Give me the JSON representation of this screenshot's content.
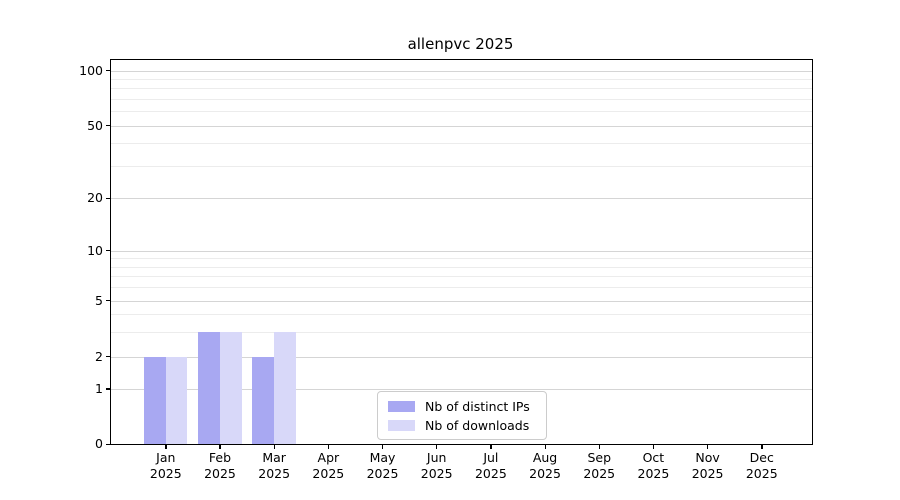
{
  "chart_data": {
    "type": "bar",
    "title": "allenpvc 2025",
    "categories": [
      "Jan 2025",
      "Feb 2025",
      "Mar 2025",
      "Apr 2025",
      "May 2025",
      "Jun 2025",
      "Jul 2025",
      "Aug 2025",
      "Sep 2025",
      "Oct 2025",
      "Nov 2025",
      "Dec 2025"
    ],
    "series": [
      {
        "name": "Nb of distinct IPs",
        "color": "#a8a8f2",
        "values": [
          2,
          3,
          2,
          0,
          0,
          0,
          0,
          0,
          0,
          0,
          0,
          0
        ]
      },
      {
        "name": "Nb of downloads",
        "color": "#d8d8f9",
        "values": [
          2,
          3,
          3,
          0,
          0,
          0,
          0,
          0,
          0,
          0,
          0,
          0
        ]
      }
    ],
    "xlabel": "",
    "ylabel": "",
    "yaxis": {
      "scale": "symlog",
      "major_ticks": [
        0,
        1,
        2,
        5,
        10,
        20,
        50,
        100
      ],
      "tick_labels": [
        "0",
        "1",
        "2",
        "5",
        "10",
        "20",
        "50",
        "100"
      ],
      "minor_gridlines": [
        3,
        4,
        6,
        7,
        8,
        9,
        30,
        40,
        60,
        70,
        80,
        90
      ],
      "ylim": [
        0,
        115
      ]
    },
    "grid": "both",
    "legend": {
      "entries": [
        "Nb of distinct IPs",
        "Nb of downloads"
      ],
      "position": "lower center inside"
    },
    "colors": {
      "major_grid": "#d5d5d5",
      "minor_grid": "#ececec",
      "spine": "#000000",
      "text": "#000000",
      "background": "#ffffff"
    }
  }
}
